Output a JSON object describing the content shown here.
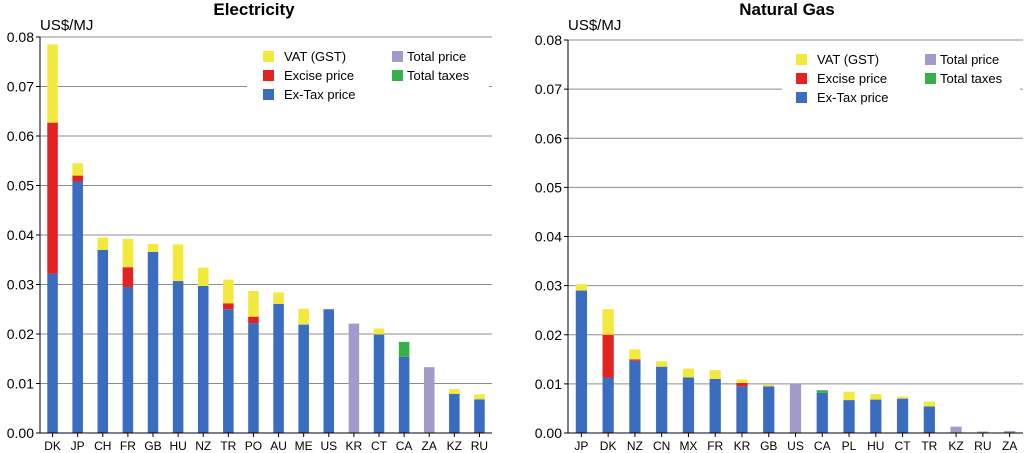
{
  "chart_data": [
    {
      "type": "bar",
      "stacked": true,
      "title": "Electricity",
      "ylabel": "US$/MJ",
      "ylim": [
        0,
        0.08
      ],
      "yticks": [
        "0.00",
        "0.01",
        "0.02",
        "0.03",
        "0.04",
        "0.05",
        "0.06",
        "0.07",
        "0.08"
      ],
      "grid": true,
      "legend_position": "top-right",
      "categories": [
        "DK",
        "JP",
        "CH",
        "FR",
        "GB",
        "HU",
        "NZ",
        "TR",
        "PO",
        "AU",
        "ME",
        "US",
        "KR",
        "CT",
        "CA",
        "ZA",
        "KZ",
        "RU"
      ],
      "series": [
        {
          "name": "Ex-Tax price",
          "color": "#3a6dbf",
          "values": [
            0.0322,
            0.0508,
            0.037,
            0.0295,
            0.0366,
            0.0307,
            0.0297,
            0.025,
            0.0222,
            0.0261,
            0.0219,
            0.025,
            0,
            0.0199,
            0.0154,
            0,
            0.0079,
            0.0068
          ]
        },
        {
          "name": "Excise price",
          "color": "#e32222",
          "values": [
            0.0305,
            0.0012,
            0,
            0.004,
            0,
            0,
            0,
            0.0012,
            0.0013,
            0,
            0,
            0,
            0,
            0,
            0,
            0,
            0,
            0
          ]
        },
        {
          "name": "VAT (GST)",
          "color": "#f3e83c",
          "values": [
            0.0158,
            0.0025,
            0.0025,
            0.0057,
            0.0016,
            0.0074,
            0.0037,
            0.0048,
            0.0052,
            0.0023,
            0.0032,
            0,
            0,
            0.0012,
            0,
            0,
            0.001,
            0.001
          ]
        },
        {
          "name": "Total taxes",
          "color": "#37b04a",
          "values": [
            0,
            0,
            0,
            0,
            0,
            0,
            0,
            0,
            0,
            0,
            0,
            0,
            0,
            0,
            0.003,
            0,
            0,
            0
          ]
        },
        {
          "name": "Total price",
          "color": "#a39ac9",
          "values": [
            0,
            0,
            0,
            0,
            0,
            0,
            0,
            0,
            0,
            0,
            0,
            0,
            0.0221,
            0,
            0,
            0.0133,
            0,
            0
          ]
        }
      ],
      "legend": {
        "col1": [
          "VAT (GST)",
          "Excise price",
          "Ex-Tax price"
        ],
        "col2": [
          "Total price",
          "Total taxes"
        ]
      }
    },
    {
      "type": "bar",
      "stacked": true,
      "title": "Natural Gas",
      "ylabel": "US$/MJ",
      "ylim": [
        0,
        0.08
      ],
      "yticks": [
        "0.00",
        "0.01",
        "0.02",
        "0.03",
        "0.04",
        "0.05",
        "0.06",
        "0.07",
        "0.08"
      ],
      "grid": true,
      "legend_position": "top-right",
      "categories": [
        "JP",
        "DK",
        "NZ",
        "CN",
        "MX",
        "FR",
        "KR",
        "GB",
        "US",
        "CA",
        "PL",
        "HU",
        "CT",
        "TR",
        "KZ",
        "RU",
        "ZA"
      ],
      "series": [
        {
          "name": "Ex-Tax price",
          "color": "#3a6dbf",
          "values": [
            0.029,
            0.0113,
            0.0147,
            0.0135,
            0.0113,
            0.011,
            0.0095,
            0.0095,
            0,
            0.0082,
            0.0067,
            0.0068,
            0.007,
            0.0054,
            0,
            0,
            0
          ]
        },
        {
          "name": "Excise price",
          "color": "#e32222",
          "values": [
            0,
            0.0087,
            0.0003,
            0,
            0,
            0,
            0.0007,
            0,
            0,
            0,
            0,
            0,
            0,
            0,
            0,
            0,
            0
          ]
        },
        {
          "name": "VAT (GST)",
          "color": "#f3e83c",
          "values": [
            0.0013,
            0.0052,
            0.002,
            0.0011,
            0.0018,
            0.0018,
            0.0007,
            0.0003,
            0,
            0,
            0.0017,
            0.0011,
            0.0004,
            0.001,
            0,
            0,
            0
          ]
        },
        {
          "name": "Total taxes",
          "color": "#37b04a",
          "values": [
            0,
            0,
            0,
            0,
            0,
            0,
            0,
            0,
            0,
            0.0005,
            0,
            0,
            0,
            0,
            0,
            0,
            0
          ]
        },
        {
          "name": "Total price",
          "color": "#a39ac9",
          "values": [
            0,
            0,
            0,
            0,
            0,
            0,
            0,
            0,
            0.01,
            0,
            0,
            0,
            0,
            0,
            0.0013,
            0.0003,
            0.0004
          ]
        }
      ],
      "legend": {
        "col1": [
          "VAT (GST)",
          "Excise price",
          "Ex-Tax price"
        ],
        "col2": [
          "Total price",
          "Total taxes"
        ]
      }
    }
  ]
}
